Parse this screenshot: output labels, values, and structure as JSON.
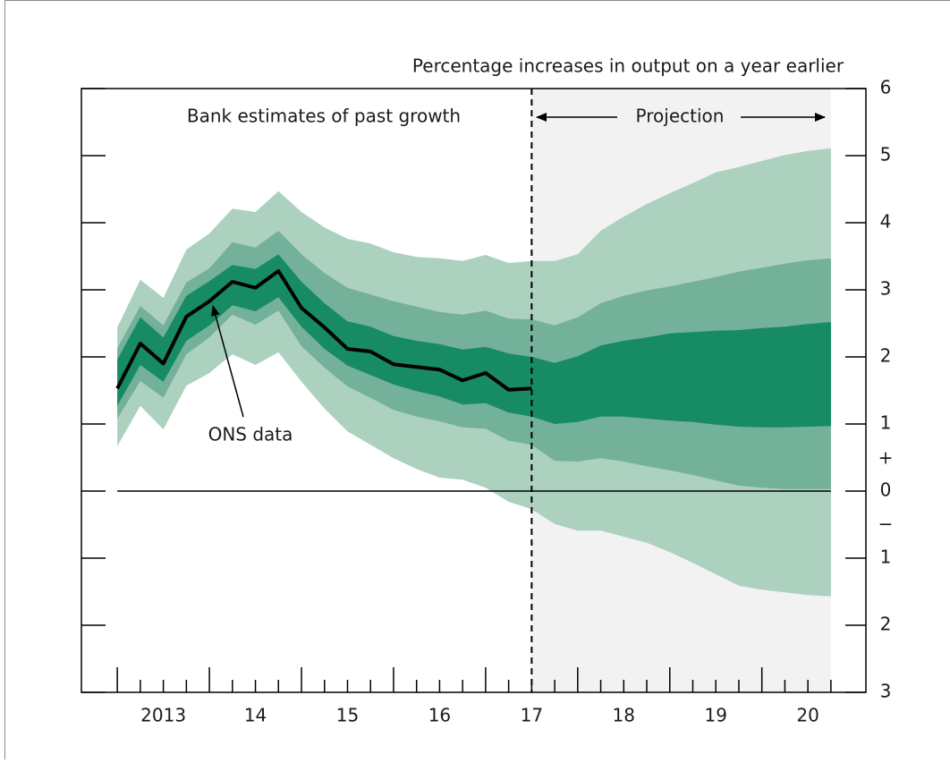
{
  "chart_data": {
    "type": "fan",
    "y_axis_label": "Percentage increases in output on a year earlier",
    "annotations": {
      "past": "Bank estimates of past growth",
      "projection": "Projection",
      "ons": "ONS data",
      "plus": "+",
      "minus": "−"
    },
    "projection_start": 2017.5,
    "xlim": [
      2012.61,
      2021.13
    ],
    "ylim": [
      -3,
      6
    ],
    "yticks": [
      {
        "value": -3,
        "label": "3"
      },
      {
        "value": -2,
        "label": "2"
      },
      {
        "value": -1,
        "label": "1"
      },
      0,
      1,
      2,
      3,
      4,
      5,
      6
    ],
    "xticks": [
      {
        "value": 2013.5,
        "label": "2013"
      },
      {
        "value": 2014.5,
        "label": "14"
      },
      {
        "value": 2015.5,
        "label": "15"
      },
      {
        "value": 2016.5,
        "label": "16"
      },
      {
        "value": 2017.5,
        "label": "17"
      },
      {
        "value": 2018.5,
        "label": "18"
      },
      {
        "value": 2019.5,
        "label": "19"
      },
      {
        "value": 2020.5,
        "label": "20"
      }
    ],
    "xminorticks": [
      2013,
      2013.25,
      2013.5,
      2013.75,
      2014,
      2014.25,
      2014.5,
      2014.75,
      2015,
      2015.25,
      2015.5,
      2015.75,
      2016,
      2016.25,
      2016.5,
      2016.75,
      2017,
      2017.25,
      2017.5,
      2017.75,
      2018,
      2018.25,
      2018.5,
      2018.75,
      2019,
      2019.25,
      2019.5,
      2019.75,
      2020,
      2020.25,
      2020.5,
      2020.75
    ],
    "x": [
      2013,
      2013.25,
      2013.5,
      2013.75,
      2014,
      2014.25,
      2014.5,
      2014.75,
      2015,
      2015.25,
      2015.5,
      2015.75,
      2016,
      2016.25,
      2016.5,
      2016.75,
      2017,
      2017.25,
      2017.5,
      2017.75,
      2018,
      2018.25,
      2018.5,
      2018.75,
      2019,
      2019.25,
      2019.5,
      2019.75,
      2020,
      2020.25,
      2020.5,
      2020.75
    ],
    "bands": [
      {
        "color": "#acd1bf",
        "upper": [
          2.44,
          3.15,
          2.88,
          3.6,
          3.84,
          4.21,
          4.16,
          4.47,
          4.16,
          3.93,
          3.76,
          3.69,
          3.56,
          3.49,
          3.47,
          3.43,
          3.52,
          3.4,
          3.43,
          3.43,
          3.53,
          3.88,
          4.09,
          4.28,
          4.44,
          4.59,
          4.75,
          4.83,
          4.92,
          5.01,
          5.07,
          5.11
        ],
        "lower": [
          0.67,
          1.27,
          0.92,
          1.57,
          1.76,
          2.04,
          1.88,
          2.07,
          1.63,
          1.23,
          0.89,
          0.69,
          0.49,
          0.33,
          0.2,
          0.17,
          0.05,
          -0.16,
          -0.27,
          -0.49,
          -0.59,
          -0.59,
          -0.68,
          -0.77,
          -0.91,
          -1.07,
          -1.24,
          -1.41,
          -1.47,
          -1.51,
          -1.55,
          -1.57
        ]
      },
      {
        "color": "#74b19a",
        "upper": [
          2.13,
          2.76,
          2.47,
          3.11,
          3.32,
          3.71,
          3.63,
          3.88,
          3.53,
          3.25,
          3.03,
          2.93,
          2.83,
          2.75,
          2.67,
          2.63,
          2.69,
          2.57,
          2.56,
          2.47,
          2.59,
          2.8,
          2.91,
          2.99,
          3.05,
          3.12,
          3.19,
          3.27,
          3.33,
          3.39,
          3.44,
          3.47
        ],
        "lower": [
          1.08,
          1.64,
          1.39,
          2.04,
          2.29,
          2.63,
          2.48,
          2.69,
          2.16,
          1.84,
          1.56,
          1.39,
          1.21,
          1.11,
          1.04,
          0.95,
          0.93,
          0.75,
          0.69,
          0.45,
          0.44,
          0.49,
          0.44,
          0.37,
          0.31,
          0.24,
          0.16,
          0.08,
          0.05,
          0.03,
          0.03,
          0.03
        ]
      },
      {
        "color": "#168b64",
        "upper": [
          1.96,
          2.59,
          2.29,
          2.91,
          3.13,
          3.37,
          3.31,
          3.53,
          3.12,
          2.8,
          2.53,
          2.45,
          2.31,
          2.24,
          2.19,
          2.11,
          2.15,
          2.05,
          2.0,
          1.91,
          2.01,
          2.17,
          2.24,
          2.29,
          2.35,
          2.37,
          2.39,
          2.4,
          2.43,
          2.45,
          2.49,
          2.52
        ],
        "lower": [
          1.27,
          1.88,
          1.63,
          2.24,
          2.47,
          2.77,
          2.68,
          2.89,
          2.45,
          2.12,
          1.87,
          1.73,
          1.59,
          1.49,
          1.41,
          1.29,
          1.31,
          1.17,
          1.11,
          1.0,
          1.03,
          1.11,
          1.11,
          1.08,
          1.05,
          1.03,
          0.99,
          0.96,
          0.95,
          0.95,
          0.96,
          0.97
        ]
      }
    ],
    "line": {
      "color": "#000000",
      "values": [
        1.53,
        2.2,
        1.9,
        2.6,
        2.83,
        3.12,
        3.03,
        3.28,
        2.73,
        2.44,
        2.12,
        2.08,
        1.89,
        1.85,
        1.81,
        1.65,
        1.76,
        1.51,
        1.53,
        null,
        null,
        null,
        null,
        null,
        null,
        null,
        null,
        null,
        null,
        null,
        null,
        null
      ]
    }
  }
}
